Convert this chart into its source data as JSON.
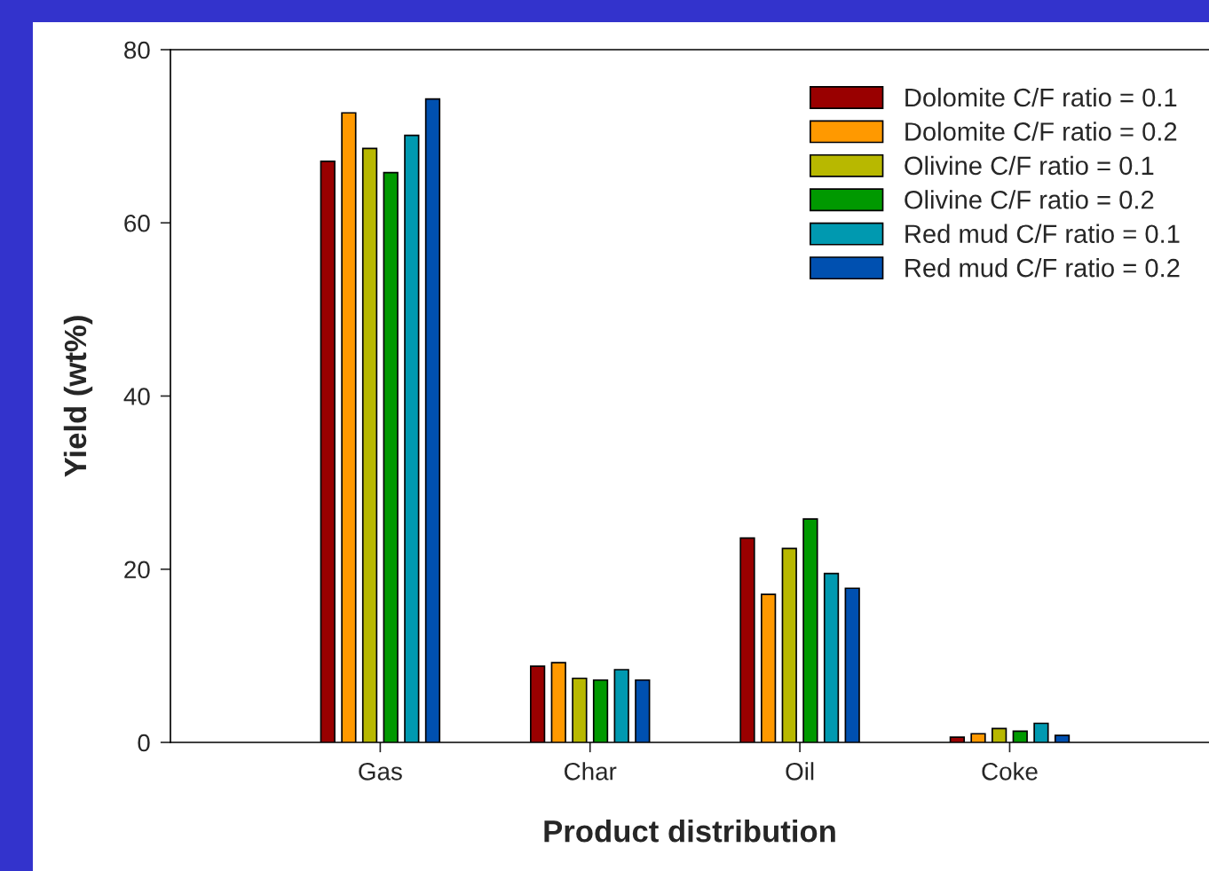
{
  "chart_data": {
    "type": "bar",
    "xlabel": "Product distribution",
    "ylabel": "Yield (wt%)",
    "categories": [
      "Gas",
      "Char",
      "Oil",
      "Coke"
    ],
    "series": [
      {
        "name": "Dolomite C/F ratio = 0.1",
        "color": "#990000",
        "values": [
          67.1,
          8.8,
          23.6,
          0.6
        ]
      },
      {
        "name": "Dolomite C/F ratio = 0.2",
        "color": "#ff9900",
        "values": [
          72.7,
          9.2,
          17.1,
          1.0
        ]
      },
      {
        "name": "Olivine C/F ratio = 0.1",
        "color": "#b8b800",
        "values": [
          68.6,
          7.4,
          22.4,
          1.6
        ]
      },
      {
        "name": "Olivine C/F ratio = 0.2",
        "color": "#009900",
        "values": [
          65.8,
          7.2,
          25.8,
          1.3
        ]
      },
      {
        "name": "Red mud C/F ratio = 0.1",
        "color": "#0099b0",
        "values": [
          70.1,
          8.4,
          19.5,
          2.2
        ]
      },
      {
        "name": "Red mud C/F ratio = 0.2",
        "color": "#0050b0",
        "values": [
          74.3,
          7.2,
          17.8,
          0.8
        ]
      }
    ],
    "ylim": [
      0,
      80
    ],
    "yticks": [
      0,
      20,
      40,
      60,
      80
    ],
    "grid": false,
    "legend": "top right"
  }
}
